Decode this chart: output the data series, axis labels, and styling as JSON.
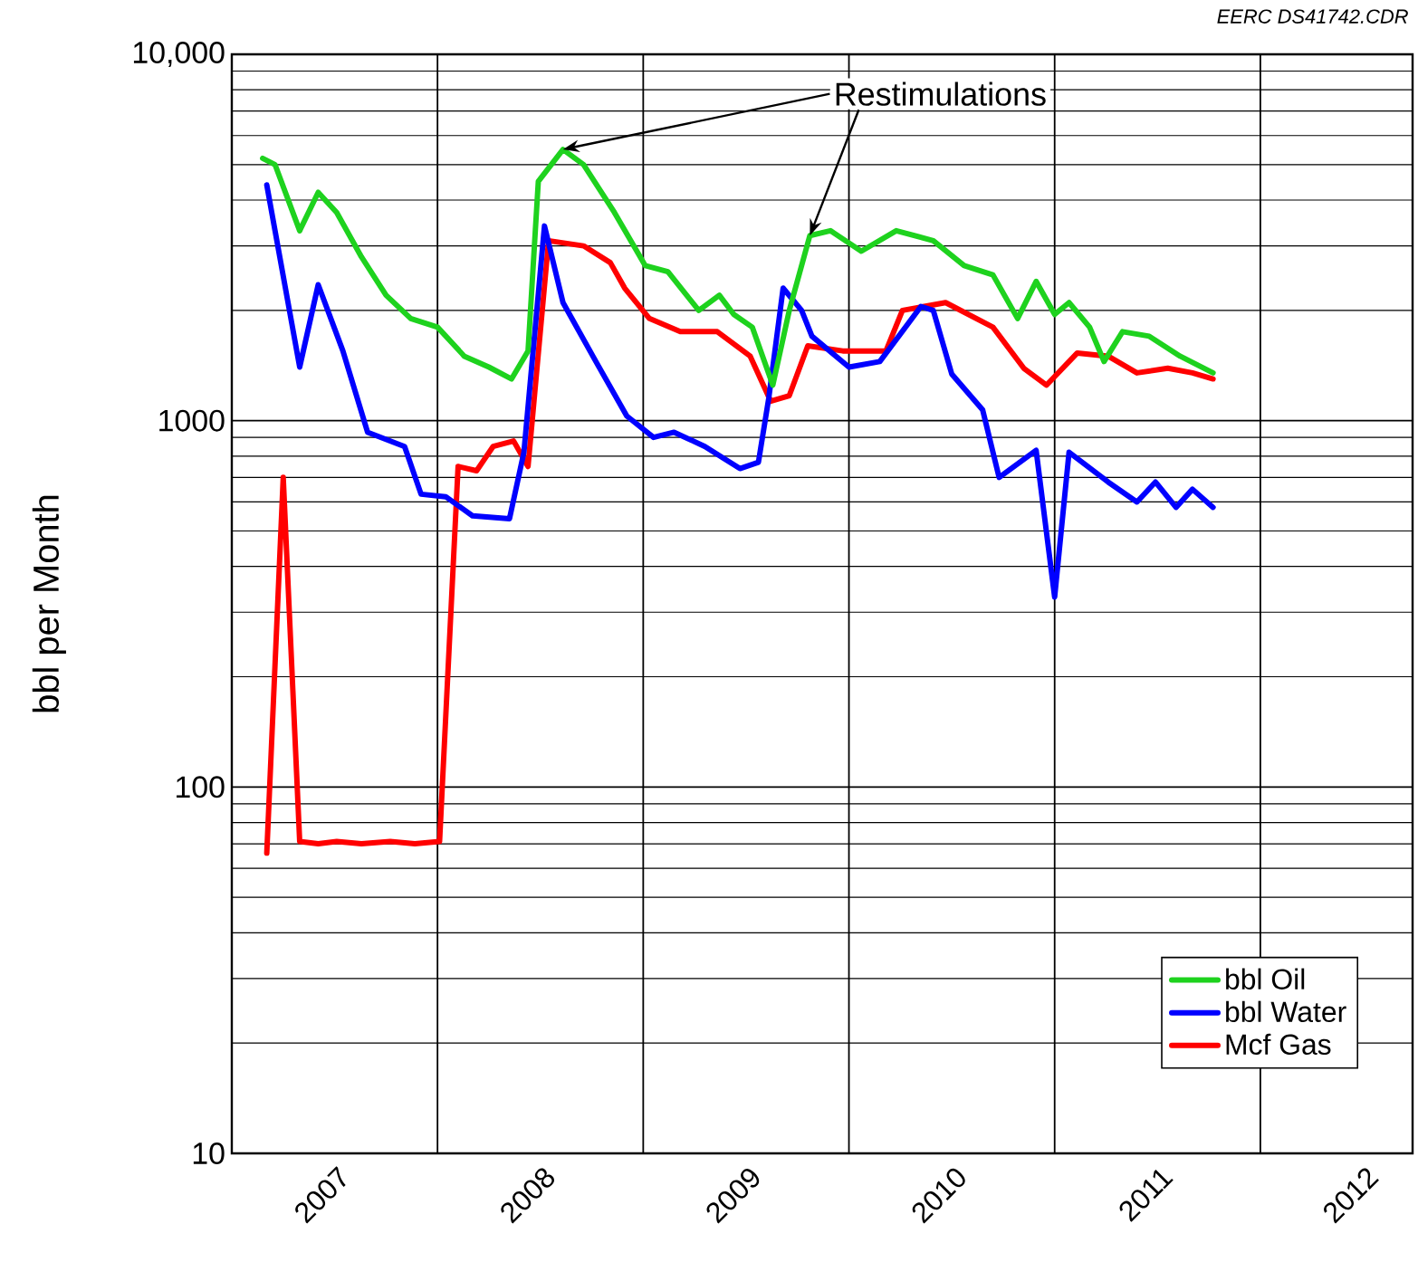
{
  "chart_data": {
    "type": "line",
    "ylabel": "bbl per Month",
    "log": true,
    "grid": true,
    "legend": "bottom right",
    "marker": "none",
    "line_style": "solid",
    "xlim": [
      2007,
      2012.74
    ],
    "xticks": [
      {
        "value": 2007,
        "label": null
      },
      {
        "value": 2008,
        "label": null
      },
      {
        "value": 2009,
        "label": null
      },
      {
        "value": 2010,
        "label": null
      },
      {
        "value": 2011,
        "label": null
      },
      {
        "value": 2012,
        "label": null
      },
      {
        "value": 2007.5,
        "label": "2007"
      },
      {
        "value": 2008.5,
        "label": "2008"
      },
      {
        "value": 2009.5,
        "label": "2009"
      },
      {
        "value": 2010.5,
        "label": "2010"
      },
      {
        "value": 2011.5,
        "label": "2011"
      },
      {
        "value": 2012.5,
        "label": "2012"
      }
    ],
    "ylim": [
      10,
      10000
    ],
    "yticks": [
      10,
      100,
      1000,
      {
        "value": 10000,
        "label": "10,000"
      }
    ],
    "annotations": [
      {
        "text": "Restimulations",
        "x": 2008.61,
        "y": 5500
      },
      "EERC DS41742.CDR"
    ],
    "series": [
      {
        "name": "bbl Oil",
        "color": "#1ed21e",
        "x": [
          2007.15,
          2007.21,
          2007.33,
          2007.42,
          2007.51,
          2007.63,
          2007.75,
          2007.87,
          2008.0,
          2008.13,
          2008.25,
          2008.36,
          2008.44,
          2008.49,
          2008.61,
          2008.71,
          2008.86,
          2009.01,
          2009.12,
          2009.27,
          2009.37,
          2009.44,
          2009.53,
          2009.63,
          2009.71,
          2009.81,
          2009.91,
          2010.06,
          2010.23,
          2010.41,
          2010.56,
          2010.7,
          2010.82,
          2010.91,
          2011.0,
          2011.07,
          2011.17,
          2011.24,
          2011.33,
          2011.46,
          2011.61,
          2011.77
        ],
        "values": [
          5200,
          5000,
          3300,
          4200,
          3700,
          2800,
          2200,
          1900,
          1800,
          1500,
          1400,
          1300,
          1550,
          4500,
          5500,
          5000,
          3700,
          2650,
          2550,
          2000,
          2200,
          1950,
          1800,
          1250,
          2000,
          3200,
          3300,
          2900,
          3300,
          3100,
          2650,
          2500,
          1900,
          2400,
          1950,
          2100,
          1800,
          1450,
          1750,
          1700,
          1500,
          1350
        ]
      },
      {
        "name": "bbl Water",
        "color": "#0000ff",
        "x": [
          2007.17,
          2007.33,
          2007.42,
          2007.54,
          2007.66,
          2007.84,
          2007.92,
          2008.04,
          2008.17,
          2008.35,
          2008.42,
          2008.52,
          2008.61,
          2008.77,
          2008.92,
          2009.05,
          2009.15,
          2009.3,
          2009.47,
          2009.56,
          2009.61,
          2009.68,
          2009.77,
          2009.82,
          2010.0,
          2010.15,
          2010.35,
          2010.41,
          2010.5,
          2010.65,
          2010.73,
          2010.91,
          2011.0,
          2011.07,
          2011.26,
          2011.4,
          2011.49,
          2011.59,
          2011.67,
          2011.77
        ],
        "values": [
          4400,
          1400,
          2350,
          1550,
          930,
          850,
          630,
          620,
          550,
          540,
          820,
          3400,
          2100,
          1450,
          1030,
          900,
          930,
          850,
          740,
          770,
          1150,
          2300,
          2000,
          1700,
          1400,
          1450,
          2050,
          2000,
          1340,
          1070,
          700,
          830,
          330,
          820,
          680,
          600,
          680,
          580,
          650,
          580
        ]
      },
      {
        "name": "Mcf Gas",
        "color": "#ff0000",
        "x": [
          2007.17,
          2007.25,
          2007.33,
          2007.42,
          2007.51,
          2007.63,
          2007.77,
          2007.89,
          2008.01,
          2008.1,
          2008.19,
          2008.27,
          2008.37,
          2008.44,
          2008.54,
          2008.71,
          2008.84,
          2008.91,
          2009.03,
          2009.18,
          2009.36,
          2009.52,
          2009.62,
          2009.71,
          2009.8,
          2009.97,
          2010.18,
          2010.26,
          2010.47,
          2010.7,
          2010.85,
          2010.96,
          2011.11,
          2011.26,
          2011.4,
          2011.55,
          2011.67,
          2011.77
        ],
        "values": [
          66,
          700,
          71,
          70,
          71,
          70,
          71,
          70,
          71,
          750,
          730,
          850,
          880,
          750,
          3100,
          3000,
          2700,
          2300,
          1900,
          1750,
          1750,
          1500,
          1130,
          1170,
          1600,
          1550,
          1550,
          2000,
          2100,
          1800,
          1390,
          1250,
          1530,
          1500,
          1350,
          1390,
          1350,
          1300
        ]
      }
    ]
  }
}
